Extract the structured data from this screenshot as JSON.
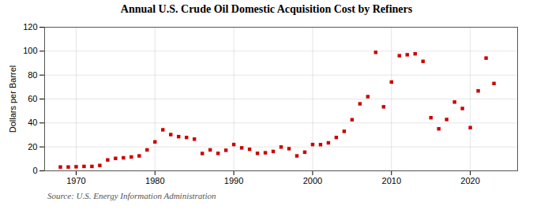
{
  "chart_data": {
    "type": "scatter",
    "title": "Annual U.S. Crude Oil Domestic Acquisition Cost by Refiners",
    "ylabel": "Dollars per Barrel",
    "annotation": "Source: U.S. Energy Information Administration",
    "color": "#cc0000",
    "marker": "square",
    "grid": true,
    "x": [
      1968,
      1969,
      1970,
      1971,
      1972,
      1973,
      1974,
      1975,
      1976,
      1977,
      1978,
      1979,
      1980,
      1981,
      1982,
      1983,
      1984,
      1985,
      1986,
      1987,
      1988,
      1989,
      1990,
      1991,
      1992,
      1993,
      1994,
      1995,
      1996,
      1997,
      1998,
      1999,
      2000,
      2001,
      2002,
      2003,
      2004,
      2005,
      2006,
      2007,
      2008,
      2009,
      2010,
      2011,
      2012,
      2013,
      2014,
      2015,
      2016,
      2017,
      2018,
      2019,
      2020,
      2021,
      2022,
      2023
    ],
    "values": [
      3.2,
      3.2,
      3.4,
      3.7,
      3.7,
      4.5,
      9.1,
      10.4,
      10.9,
      11.6,
      12.5,
      17.5,
      24.2,
      34.3,
      30.3,
      28.6,
      27.9,
      26.5,
      14.5,
      17.5,
      14.6,
      17.2,
      22.0,
      19.2,
      18.0,
      14.6,
      15.1,
      16.2,
      19.9,
      18.5,
      12.5,
      15.6,
      22.0,
      21.9,
      23.4,
      27.9,
      33.0,
      42.7,
      56.0,
      62.0,
      99.0,
      53.5,
      74.2,
      96.2,
      97.0,
      97.8,
      91.5,
      44.4,
      35.1,
      42.9,
      57.5,
      52.1,
      36.1,
      66.8,
      94.2,
      73.0
    ],
    "xlim": [
      1966,
      2026
    ],
    "xticks": [
      1970,
      1980,
      1990,
      2000,
      2010,
      2020
    ],
    "ylim": [
      0,
      120
    ],
    "yticks": [
      0,
      20,
      40,
      60,
      80,
      100,
      120
    ]
  }
}
